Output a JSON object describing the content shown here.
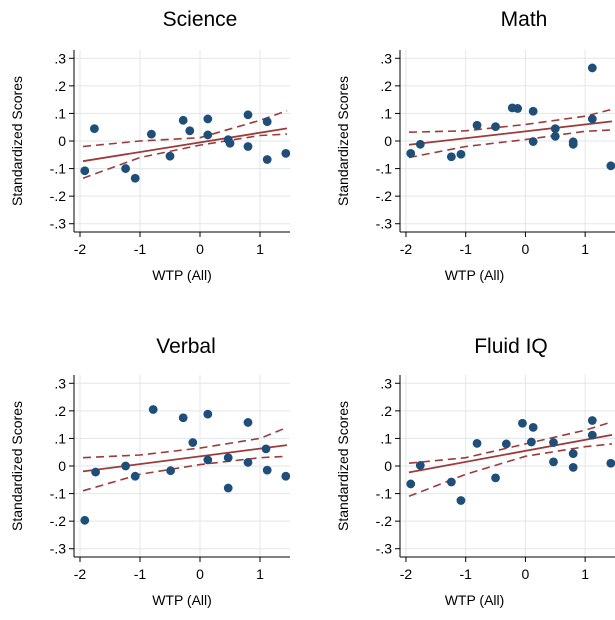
{
  "chart_data": [
    {
      "type": "scatter",
      "title": "Science",
      "xlabel": "WTP (All)",
      "ylabel": "Standardized Scores",
      "xlim": [
        -2.1,
        1.5
      ],
      "ylim": [
        -0.33,
        0.33
      ],
      "xticks": [
        -2,
        -1,
        0,
        1
      ],
      "xtick_labels": [
        "-2",
        "-1",
        "0",
        "1"
      ],
      "yticks": [
        0.3,
        0.2,
        0.1,
        0,
        -0.1,
        -0.2,
        -0.3
      ],
      "ytick_labels": [
        ".3",
        ".2",
        ".1",
        "0",
        "-.1",
        "-.2",
        "-.3"
      ],
      "grid": true,
      "points": [
        {
          "x": -1.92,
          "y": -0.108
        },
        {
          "x": -1.76,
          "y": 0.045
        },
        {
          "x": -1.24,
          "y": -0.1
        },
        {
          "x": -1.08,
          "y": -0.135
        },
        {
          "x": -0.81,
          "y": 0.025
        },
        {
          "x": -0.5,
          "y": -0.055
        },
        {
          "x": -0.28,
          "y": 0.075
        },
        {
          "x": -0.17,
          "y": 0.037
        },
        {
          "x": 0.13,
          "y": 0.08
        },
        {
          "x": 0.13,
          "y": 0.022
        },
        {
          "x": 0.47,
          "y": 0.005
        },
        {
          "x": 0.5,
          "y": -0.008
        },
        {
          "x": 0.8,
          "y": 0.095
        },
        {
          "x": 0.8,
          "y": -0.02
        },
        {
          "x": 1.12,
          "y": 0.07
        },
        {
          "x": 1.12,
          "y": -0.067
        },
        {
          "x": 1.43,
          "y": -0.045
        }
      ],
      "fit": {
        "intercept": -0.005,
        "slope": 0.035
      },
      "ci": {
        "lower": [
          [
            -1.95,
            -0.135
          ],
          [
            -1.0,
            -0.06
          ],
          [
            0.0,
            -0.015
          ],
          [
            1.0,
            0.02
          ],
          [
            1.45,
            0.025
          ]
        ],
        "upper": [
          [
            -1.95,
            -0.02
          ],
          [
            -1.0,
            -0.0
          ],
          [
            0.0,
            0.012
          ],
          [
            1.0,
            0.075
          ],
          [
            1.45,
            0.11
          ]
        ]
      },
      "colors": {
        "points": "#1f4e79",
        "fit": "#9c3b3b",
        "grid": "#dfe7ec"
      }
    },
    {
      "type": "scatter",
      "title": "Math",
      "xlabel": "WTP (All)",
      "ylabel": "Standardized Scores",
      "xlim": [
        -2.1,
        1.5
      ],
      "ylim": [
        -0.33,
        0.33
      ],
      "xticks": [
        -2,
        -1,
        0,
        1
      ],
      "xtick_labels": [
        "-2",
        "-1",
        "0",
        "1"
      ],
      "yticks": [
        0.3,
        0.2,
        0.1,
        0,
        -0.1,
        -0.2,
        -0.3
      ],
      "ytick_labels": [
        ".3",
        ".2",
        ".1",
        "0",
        "-.1",
        "-.2",
        "-.3"
      ],
      "grid": true,
      "points": [
        {
          "x": -1.92,
          "y": -0.045
        },
        {
          "x": -1.76,
          "y": -0.012
        },
        {
          "x": -1.24,
          "y": -0.057
        },
        {
          "x": -1.08,
          "y": -0.048
        },
        {
          "x": -0.81,
          "y": 0.057
        },
        {
          "x": -0.5,
          "y": 0.052
        },
        {
          "x": -0.22,
          "y": 0.12
        },
        {
          "x": -0.13,
          "y": 0.118
        },
        {
          "x": 0.13,
          "y": 0.108
        },
        {
          "x": 0.13,
          "y": -0.002
        },
        {
          "x": 0.5,
          "y": 0.045
        },
        {
          "x": 0.5,
          "y": 0.017
        },
        {
          "x": 0.8,
          "y": -0.003
        },
        {
          "x": 0.8,
          "y": -0.012
        },
        {
          "x": 1.12,
          "y": 0.265
        },
        {
          "x": 1.12,
          "y": 0.08
        },
        {
          "x": 1.43,
          "y": -0.09
        }
      ],
      "fit": {
        "intercept": 0.035,
        "slope": 0.025
      },
      "ci": {
        "lower": [
          [
            -1.95,
            -0.06
          ],
          [
            -1.0,
            -0.02
          ],
          [
            0.0,
            0.005
          ],
          [
            1.0,
            0.035
          ],
          [
            1.45,
            0.04
          ]
        ],
        "upper": [
          [
            -1.95,
            0.032
          ],
          [
            -1.0,
            0.037
          ],
          [
            0.0,
            0.06
          ],
          [
            1.0,
            0.09
          ],
          [
            1.45,
            0.115
          ]
        ]
      },
      "colors": {
        "points": "#1f4e79",
        "fit": "#9c3b3b",
        "grid": "#dfe7ec"
      }
    },
    {
      "type": "scatter",
      "title": "Verbal",
      "xlabel": "WTP (All)",
      "ylabel": "Standardized Scores",
      "xlim": [
        -2.1,
        1.5
      ],
      "ylim": [
        -0.33,
        0.33
      ],
      "xticks": [
        -2,
        -1,
        0,
        1
      ],
      "xtick_labels": [
        "-2",
        "-1",
        "0",
        "1"
      ],
      "yticks": [
        0.3,
        0.2,
        0.1,
        0,
        -0.1,
        -0.2,
        -0.3
      ],
      "ytick_labels": [
        ".3",
        ".2",
        ".1",
        "0",
        "-.1",
        "-.2",
        "-.3"
      ],
      "grid": true,
      "points": [
        {
          "x": -1.92,
          "y": -0.197
        },
        {
          "x": -1.74,
          "y": -0.022
        },
        {
          "x": -1.24,
          "y": 0.0
        },
        {
          "x": -1.08,
          "y": -0.037
        },
        {
          "x": -0.78,
          "y": 0.205
        },
        {
          "x": -0.49,
          "y": -0.017
        },
        {
          "x": -0.28,
          "y": 0.175
        },
        {
          "x": -0.12,
          "y": 0.085
        },
        {
          "x": 0.13,
          "y": 0.188
        },
        {
          "x": 0.13,
          "y": 0.022
        },
        {
          "x": 0.47,
          "y": 0.03
        },
        {
          "x": 0.47,
          "y": -0.08
        },
        {
          "x": 0.8,
          "y": 0.158
        },
        {
          "x": 0.8,
          "y": 0.013
        },
        {
          "x": 1.1,
          "y": 0.062
        },
        {
          "x": 1.12,
          "y": -0.015
        },
        {
          "x": 1.43,
          "y": -0.037
        }
      ],
      "fit": {
        "intercept": 0.035,
        "slope": 0.028
      },
      "ci": {
        "lower": [
          [
            -1.95,
            -0.09
          ],
          [
            -1.0,
            -0.03
          ],
          [
            0.0,
            0.005
          ],
          [
            1.0,
            0.03
          ],
          [
            1.45,
            0.035
          ]
        ],
        "upper": [
          [
            -1.95,
            0.03
          ],
          [
            -1.0,
            0.04
          ],
          [
            0.0,
            0.065
          ],
          [
            1.0,
            0.1
          ],
          [
            1.45,
            0.14
          ]
        ]
      },
      "colors": {
        "points": "#1f4e79",
        "fit": "#9c3b3b",
        "grid": "#dfe7ec"
      }
    },
    {
      "type": "scatter",
      "title": "Fluid IQ",
      "xlabel": "WTP (All)",
      "ylabel": "Standardized Scores",
      "xlim": [
        -2.1,
        1.5
      ],
      "ylim": [
        -0.33,
        0.33
      ],
      "xticks": [
        -2,
        -1,
        0,
        1
      ],
      "xtick_labels": [
        "-2",
        "-1",
        "0",
        "1"
      ],
      "yticks": [
        0.3,
        0.2,
        0.1,
        0,
        -0.1,
        -0.2,
        -0.3
      ],
      "ytick_labels": [
        ".3",
        ".2",
        ".1",
        "0",
        "-.1",
        "-.2",
        "-.3"
      ],
      "grid": true,
      "points": [
        {
          "x": -1.92,
          "y": -0.065
        },
        {
          "x": -1.76,
          "y": 0.002
        },
        {
          "x": -1.24,
          "y": -0.058
        },
        {
          "x": -1.08,
          "y": -0.125
        },
        {
          "x": -0.81,
          "y": 0.082
        },
        {
          "x": -0.5,
          "y": -0.043
        },
        {
          "x": -0.32,
          "y": 0.08
        },
        {
          "x": -0.05,
          "y": 0.155
        },
        {
          "x": 0.13,
          "y": 0.14
        },
        {
          "x": 0.1,
          "y": 0.087
        },
        {
          "x": 0.47,
          "y": 0.085
        },
        {
          "x": 0.47,
          "y": 0.015
        },
        {
          "x": 0.8,
          "y": 0.045
        },
        {
          "x": 0.8,
          "y": -0.005
        },
        {
          "x": 1.12,
          "y": 0.165
        },
        {
          "x": 1.12,
          "y": 0.112
        },
        {
          "x": 1.43,
          "y": 0.01
        }
      ],
      "fit": {
        "intercept": 0.055,
        "slope": 0.04
      },
      "ci": {
        "lower": [
          [
            -1.95,
            -0.11
          ],
          [
            -1.0,
            -0.03
          ],
          [
            0.0,
            0.035
          ],
          [
            1.0,
            0.07
          ],
          [
            1.45,
            0.08
          ]
        ],
        "upper": [
          [
            -1.95,
            0.01
          ],
          [
            -1.0,
            0.03
          ],
          [
            0.0,
            0.08
          ],
          [
            1.0,
            0.13
          ],
          [
            1.45,
            0.16
          ]
        ]
      },
      "colors": {
        "points": "#1f4e79",
        "fit": "#9c3b3b",
        "grid": "#dfe7ec"
      }
    }
  ]
}
